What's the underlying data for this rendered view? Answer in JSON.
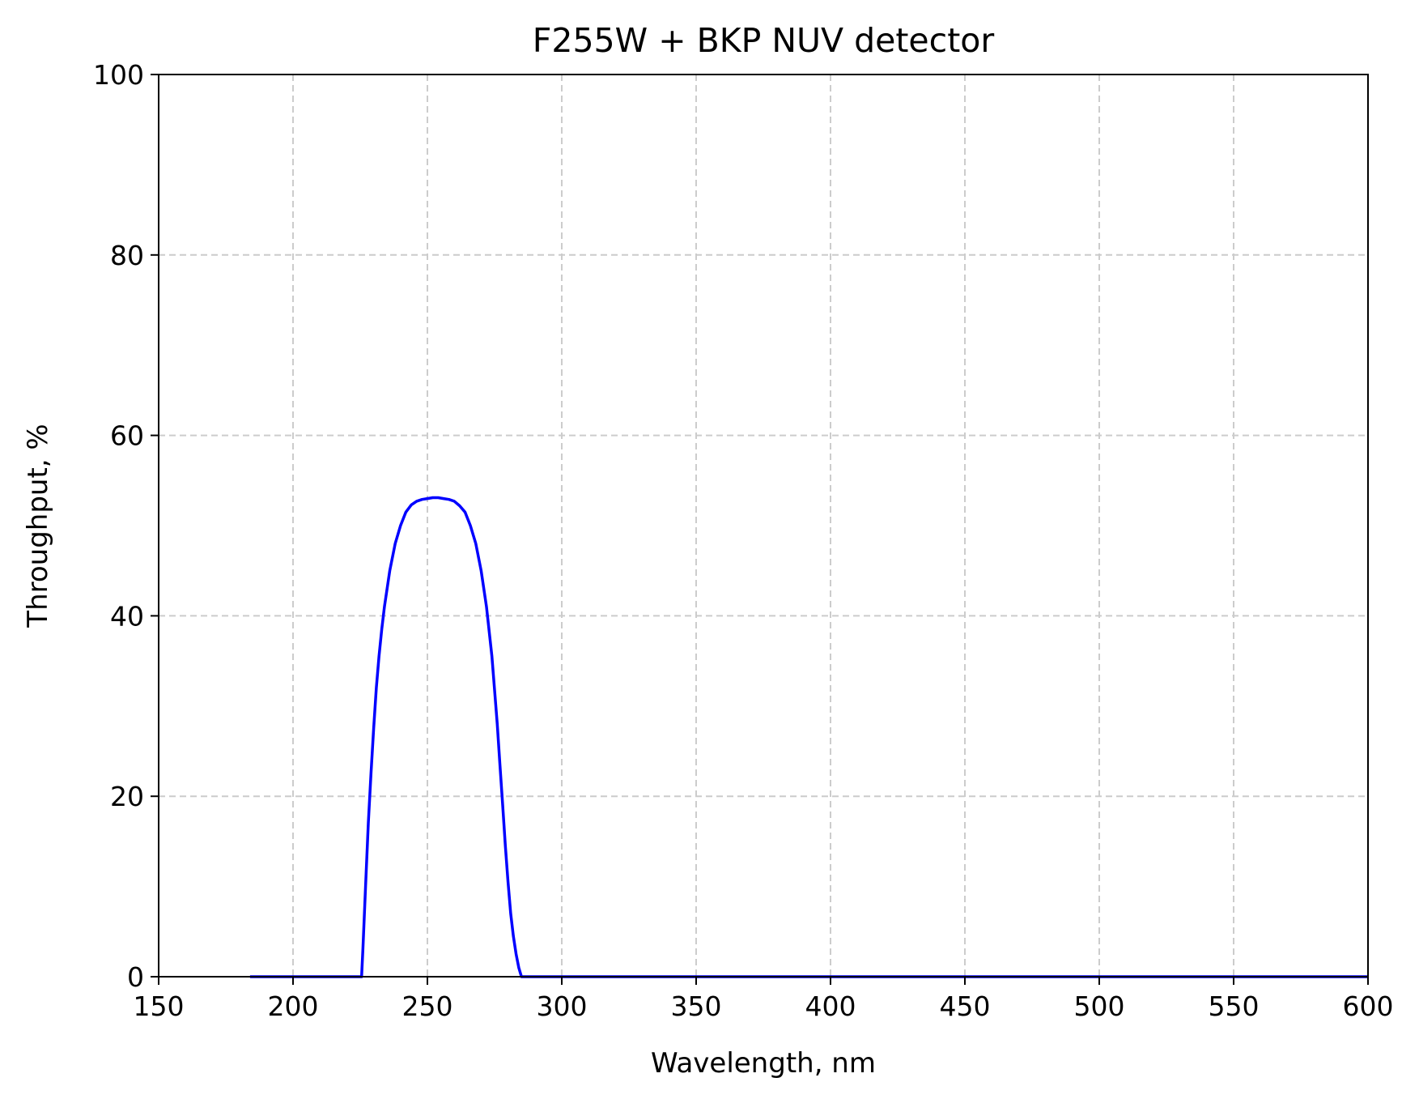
{
  "chart_data": {
    "type": "line",
    "title": "F255W + BKP NUV detector",
    "xlabel": "Wavelength, nm",
    "ylabel": "Throughput, %",
    "xlim": [
      150,
      600
    ],
    "ylim": [
      0,
      100
    ],
    "xticks": [
      150,
      200,
      250,
      300,
      350,
      400,
      450,
      500,
      550,
      600
    ],
    "yticks": [
      0,
      20,
      40,
      60,
      80,
      100
    ],
    "grid": true,
    "series": [
      {
        "color": "#0000ff",
        "x": [
          184,
          225.5,
          226,
          227,
          228,
          229,
          230,
          231,
          232,
          233,
          234,
          236,
          238,
          240,
          242,
          244,
          246,
          248,
          250,
          252,
          254,
          256,
          258,
          260,
          262,
          264,
          266,
          268,
          270,
          272,
          274,
          276,
          277,
          278,
          279,
          280,
          281,
          282,
          283,
          284,
          285,
          285.5,
          600
        ],
        "y": [
          0,
          0,
          3,
          10,
          17,
          22.5,
          27.5,
          32,
          35.5,
          38.5,
          41,
          45,
          48,
          50,
          51.5,
          52.3,
          52.7,
          52.9,
          53,
          53.1,
          53.1,
          53,
          52.9,
          52.7,
          52.2,
          51.5,
          50,
          48,
          45,
          41,
          35.5,
          28,
          23.5,
          19,
          14.5,
          10.5,
          7,
          4.5,
          2.5,
          1,
          0,
          0,
          0
        ]
      }
    ]
  }
}
